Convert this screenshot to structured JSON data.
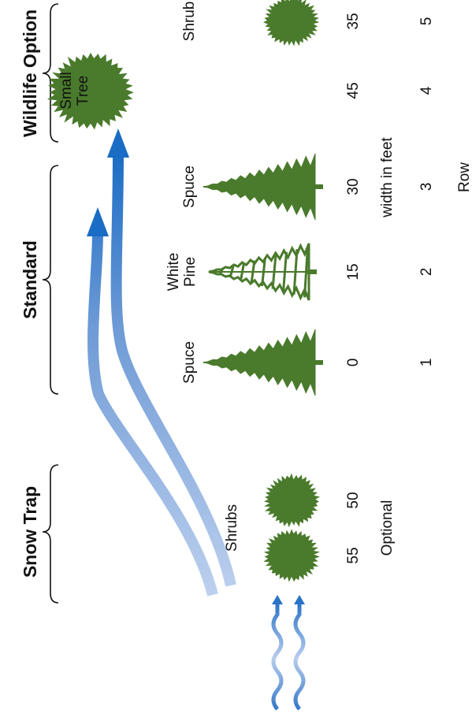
{
  "sections": [
    {
      "title": "Snow Trap"
    },
    {
      "title": "Standard"
    },
    {
      "title": "Wildlife Option"
    }
  ],
  "snow_trap": {
    "label": "Shrubs",
    "widths": [
      55,
      50
    ],
    "note": "Optional"
  },
  "rows": [
    {
      "label": [
        "Spuce"
      ],
      "width": 0,
      "row": 1
    },
    {
      "label": [
        "White",
        "Pine"
      ],
      "width": 15,
      "row": 2
    },
    {
      "label": [
        "Spuce"
      ],
      "width": 30,
      "row": 3
    },
    {
      "label": [
        "Small",
        "Tree"
      ],
      "width": 45,
      "row": 4
    },
    {
      "label": [
        "Shrub"
      ],
      "width": 35,
      "row": 5
    }
  ],
  "width_caption": "width in feet",
  "row_caption": "Row"
}
